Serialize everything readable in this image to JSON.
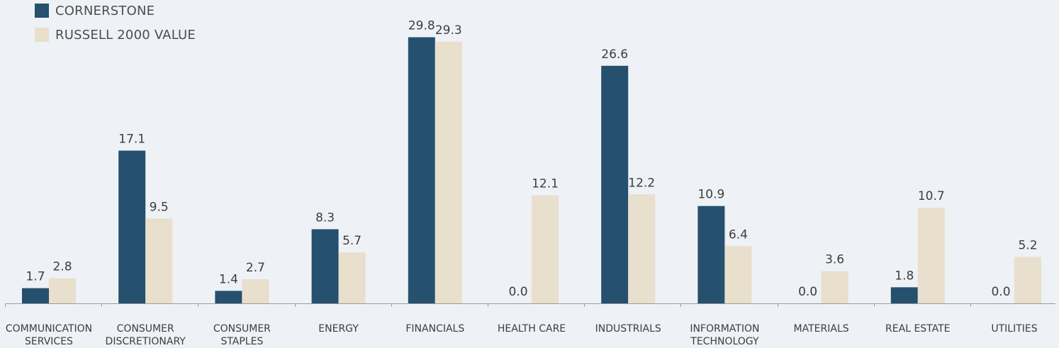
{
  "chart_data": {
    "type": "bar",
    "categories": [
      "COMMUNICATION SERVICES",
      "CONSUMER DISCRETIONARY",
      "CONSUMER STAPLES",
      "ENERGY",
      "FINANCIALS",
      "HEALTH CARE",
      "INDUSTRIALS",
      "INFORMATION TECHNOLOGY",
      "MATERIALS",
      "REAL ESTATE",
      "UTILITIES"
    ],
    "series": [
      {
        "name": "CORNERSTONE",
        "color": "#25506e",
        "values": [
          1.7,
          17.1,
          1.4,
          8.3,
          29.8,
          0.0,
          26.6,
          10.9,
          0.0,
          1.8,
          0.0
        ],
        "labels": [
          "1.7",
          "17.1",
          "1.4",
          "8.3",
          "29.8",
          "0.0",
          "26.6",
          "10.9",
          "0.0",
          "1.8",
          "0.0"
        ]
      },
      {
        "name": "RUSSELL 2000 VALUE",
        "color": "#e8dfcc",
        "values": [
          2.8,
          9.5,
          2.7,
          5.7,
          29.3,
          12.1,
          12.2,
          6.4,
          3.6,
          10.7,
          5.2
        ],
        "labels": [
          "2.8",
          "9.5",
          "2.7",
          "5.7",
          "29.3",
          "12.1",
          "12.2",
          "6.4",
          "3.6",
          "10.7",
          "5.2"
        ]
      }
    ],
    "ylim": [
      0,
      30
    ],
    "legend": "top-left",
    "grid": false,
    "axis_color": "#9a9a9a"
  }
}
